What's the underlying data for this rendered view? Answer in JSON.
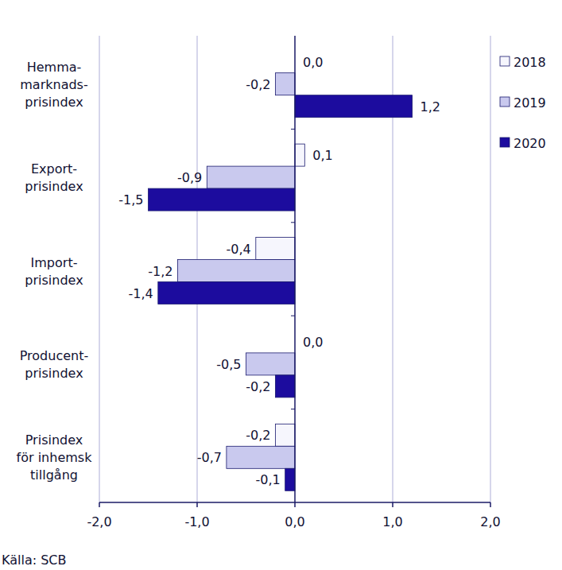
{
  "chart_data": {
    "type": "bar",
    "orientation": "horizontal",
    "data_labels": true,
    "grid": true,
    "legend": "top-right",
    "source": "Källa: SCB",
    "categories": [
      "Hemma-\nmarknads-\nprisindex",
      "Export-\nprisindex",
      "Import-\nprisindex",
      "Producent-\nprisindex",
      "Prisindex\nför inhemsk\ntillgång"
    ],
    "series": [
      {
        "name": "2018",
        "color": "#f6f6fd",
        "values": [
          0.0,
          0.1,
          -0.4,
          0.0,
          -0.2
        ],
        "value_labels": [
          "0,0",
          "0,1",
          "-0,4",
          "0,0",
          "-0,2"
        ]
      },
      {
        "name": "2019",
        "color": "#c9c9ee",
        "values": [
          -0.2,
          -0.9,
          -1.2,
          -0.5,
          -0.7
        ],
        "value_labels": [
          "-0,2",
          "-0,9",
          "-1,2",
          "-0,5",
          "-0,7"
        ]
      },
      {
        "name": "2020",
        "color": "#1c0c9e",
        "values": [
          1.2,
          -1.5,
          -1.4,
          -0.2,
          -0.1
        ],
        "value_labels": [
          "1,2",
          "-1,5",
          "-1,4",
          "-0,2",
          "-0,1"
        ]
      }
    ],
    "xlim": [
      -2,
      2
    ],
    "xticks": [
      {
        "value": -2,
        "label": "-2,0"
      },
      {
        "value": -1,
        "label": "-1,0"
      },
      {
        "value": 0,
        "label": "0,0"
      },
      {
        "value": 1,
        "label": "1,0"
      },
      {
        "value": 2,
        "label": "2,0"
      }
    ]
  }
}
